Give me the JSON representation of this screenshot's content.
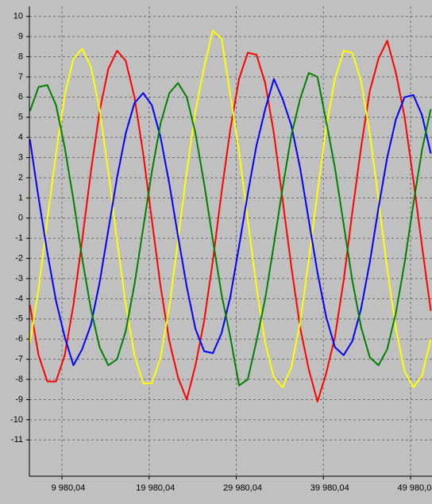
{
  "chart_data": {
    "type": "line",
    "x": [
      6300,
      7300,
      8300,
      9300,
      10300,
      11300,
      12300,
      13300,
      14300,
      15300,
      16300,
      17300,
      18300,
      19300,
      20300,
      21300,
      22300,
      23300,
      24300,
      25300,
      26300,
      27300,
      28300,
      29300,
      30300,
      31300,
      32300,
      33300,
      34300,
      35300,
      36300,
      37300,
      38300,
      39300,
      40300,
      41300,
      42300,
      43300,
      44300,
      45300,
      46300,
      47300,
      48300,
      49300,
      50300,
      51300,
      52300
    ],
    "xlim": [
      6244,
      52440
    ],
    "xticks": [
      {
        "value": 9980.04,
        "label": "9 980,04"
      },
      {
        "value": 19980.04,
        "label": "19 980,04"
      },
      {
        "value": 29980.04,
        "label": "29 980,04"
      },
      {
        "value": 39980.04,
        "label": "39 980,04"
      },
      {
        "value": 49980.04,
        "label": "49 980,04"
      }
    ],
    "ylim": [
      -12.8,
      10.5
    ],
    "yticks": [
      -11,
      -10,
      -9,
      -8,
      -7,
      -6,
      -5,
      -4,
      -3,
      -2,
      -1,
      0,
      1,
      2,
      3,
      4,
      5,
      6,
      7,
      8,
      9,
      10
    ],
    "grid": true,
    "series": [
      {
        "color": "#ff0000",
        "values": [
          -4.3,
          -6.8,
          -8.1,
          -8.1,
          -6.8,
          -4.3,
          -1.1,
          2.3,
          5.3,
          7.4,
          8.3,
          7.8,
          6.0,
          3.2,
          -0.1,
          -3.4,
          -6.1,
          -7.9,
          -9.0,
          -7.3,
          -5.1,
          -2.1,
          1.3,
          4.4,
          6.9,
          8.2,
          8.1,
          6.7,
          4.2,
          0.9,
          -2.4,
          -5.4,
          -7.5,
          -9.1,
          -7.7,
          -5.9,
          -3.1,
          0.3,
          3.5,
          6.3,
          7.9,
          8.8,
          7.2,
          5.0,
          1.9,
          -1.4,
          -4.6
        ]
      },
      {
        "color": "#ffff00",
        "values": [
          -6.2,
          -3.5,
          -0.1,
          3.2,
          6.1,
          7.9,
          8.4,
          7.5,
          5.4,
          2.3,
          -1.1,
          -4.3,
          -6.8,
          -8.2,
          -8.2,
          -6.9,
          -4.4,
          -1.1,
          2.3,
          5.3,
          7.5,
          9.3,
          8.9,
          6.1,
          3.3,
          -0.1,
          -3.4,
          -6.2,
          -7.9,
          -8.4,
          -7.4,
          -5.2,
          -2.1,
          1.3,
          4.5,
          6.9,
          8.3,
          8.2,
          6.8,
          4.2,
          0.9,
          -2.5,
          -5.5,
          -7.6,
          -8.4,
          -7.8,
          -6.0
        ]
      },
      {
        "color": "#0000ff",
        "values": [
          3.9,
          1.0,
          -1.7,
          -4.1,
          -5.9,
          -7.3,
          -6.5,
          -5.3,
          -3.2,
          -0.6,
          2.0,
          4.2,
          5.7,
          6.2,
          5.6,
          4.0,
          1.7,
          -0.9,
          -3.4,
          -5.5,
          -6.6,
          -6.7,
          -5.7,
          -3.9,
          -1.4,
          1.2,
          3.6,
          5.4,
          6.9,
          5.9,
          4.6,
          2.5,
          -0.1,
          -2.7,
          -4.9,
          -6.4,
          -6.8,
          -6.1,
          -4.5,
          -2.2,
          0.5,
          3.0,
          4.9,
          6.0,
          6.1,
          5.1,
          3.2
        ]
      },
      {
        "color": "#008000",
        "values": [
          5.3,
          6.5,
          6.6,
          5.6,
          3.5,
          0.9,
          -2.0,
          -4.5,
          -6.4,
          -7.3,
          -7.0,
          -5.6,
          -3.3,
          -0.5,
          2.3,
          4.7,
          6.2,
          6.7,
          6.0,
          4.2,
          1.7,
          -1.1,
          -3.8,
          -5.9,
          -8.3,
          -8.0,
          -6.1,
          -4.0,
          -1.3,
          1.5,
          4.1,
          5.9,
          7.2,
          7.0,
          4.8,
          2.5,
          -0.3,
          -3.1,
          -5.4,
          -6.9,
          -7.3,
          -6.5,
          -4.7,
          -2.2,
          0.7,
          3.4,
          5.4
        ]
      }
    ]
  }
}
